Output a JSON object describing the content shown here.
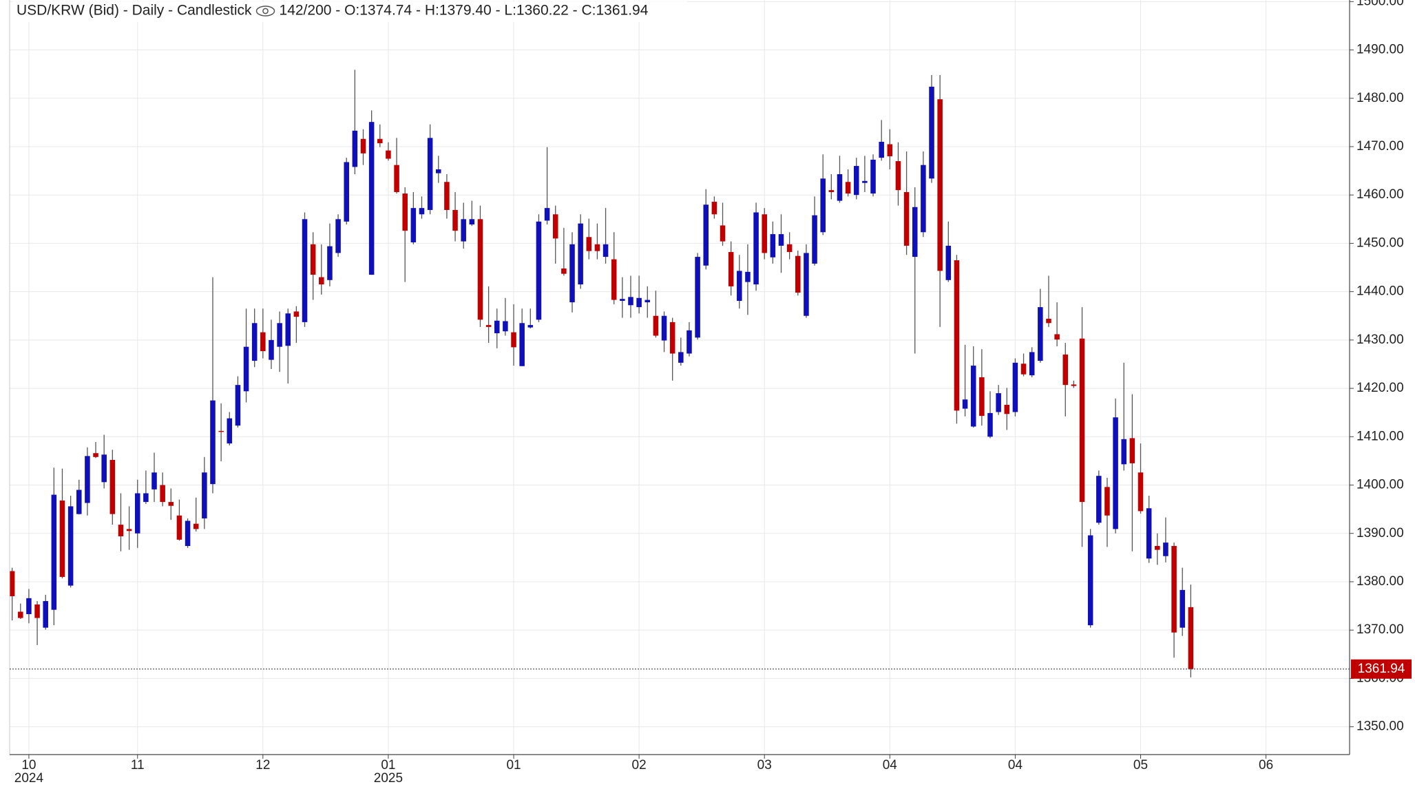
{
  "chart_data": {
    "type": "candlestick",
    "title": "USD/KRW (Bid) - Daily - Candlestick",
    "subtitle": "142/200 - O:1374.74 - H:1379.40 - L:1360.22 - C:1361.94",
    "up_color": "#1010b8",
    "down_color": "#c00000",
    "grid": true,
    "last_line": true,
    "xlim": [
      -0.3,
      160
    ],
    "xticks": [
      {
        "value": 2,
        "label": "10"
      },
      {
        "value": 15,
        "label": "11"
      },
      {
        "value": 30,
        "label": "12"
      },
      {
        "value": 45,
        "label": "01"
      },
      {
        "value": 60,
        "label": "01"
      },
      {
        "value": 75,
        "label": "02"
      },
      {
        "value": 90,
        "label": "03"
      },
      {
        "value": 105,
        "label": "04"
      },
      {
        "value": 120,
        "label": "04"
      },
      {
        "value": 135,
        "label": "05"
      },
      {
        "value": 150,
        "label": "06"
      }
    ],
    "year_ticks": [
      {
        "value": 2,
        "label": "2024"
      },
      {
        "value": 45,
        "label": "2025"
      }
    ],
    "ylim": [
      1344.25,
      1500.33
    ],
    "yticks": [
      {
        "value": 1350,
        "label": "1350.00"
      },
      {
        "value": 1360,
        "label": "1360.00"
      },
      {
        "value": 1370,
        "label": "1370.00"
      },
      {
        "value": 1380,
        "label": "1380.00"
      },
      {
        "value": 1390,
        "label": "1390.00"
      },
      {
        "value": 1400,
        "label": "1400.00"
      },
      {
        "value": 1410,
        "label": "1410.00"
      },
      {
        "value": 1420,
        "label": "1420.00"
      },
      {
        "value": 1430,
        "label": "1430.00"
      },
      {
        "value": 1440,
        "label": "1440.00"
      },
      {
        "value": 1450,
        "label": "1450.00"
      },
      {
        "value": 1460,
        "label": "1460.00"
      },
      {
        "value": 1470,
        "label": "1470.00"
      },
      {
        "value": 1480,
        "label": "1480.00"
      },
      {
        "value": 1490,
        "label": "1490.00"
      },
      {
        "value": 1500,
        "label": "1500.00"
      }
    ],
    "open": [
      1382.2,
      1373.8,
      1373.3,
      1375.3,
      1370.5,
      1374.2,
      1396.8,
      1379.2,
      1394,
      1396.3,
      1406.6,
      1400.6,
      1405.2,
      1391.8,
      1390.9,
      1390,
      1396.5,
      1399.1,
      1400,
      1396.5,
      1393.7,
      1387.4,
      1392,
      1393.1,
      1400.2,
      1411.2,
      1408.6,
      1412.3,
      1419.4,
      1425.7,
      1431.6,
      1425.9,
      1428.6,
      1428.8,
      1435.9,
      1433.7,
      1449.8,
      1443,
      1442.4,
      1448,
      1454.5,
      1465.8,
      1471.6,
      1443.5,
      1471.6,
      1469.2,
      1466.2,
      1460.3,
      1450.2,
      1456,
      1456.9,
      1464.5,
      1462.7,
      1456.9,
      1450.4,
      1453.9,
      1455,
      1433.1,
      1431.4,
      1431.8,
      1431.6,
      1424.6,
      1432.6,
      1434.2,
      1454.7,
      1456,
      1444.8,
      1437.8,
      1441.5,
      1451.3,
      1449.8,
      1447.2,
      1446.7,
      1438.1,
      1437.2,
      1436.8,
      1437.8,
      1435,
      1429.9,
      1433.7,
      1425.3,
      1427.2,
      1430.5,
      1445.4,
      1458.6,
      1453.7,
      1448.2,
      1438.1,
      1442,
      1441.5,
      1456,
      1447.1,
      1449.5,
      1449.8,
      1447.4,
      1435,
      1445.8,
      1452.3,
      1461,
      1458.8,
      1462.7,
      1460,
      1462.5,
      1460.3,
      1467.7,
      1470.5,
      1467,
      1460.6,
      1447.2,
      1452.3,
      1463.4,
      1479.8,
      1442.4,
      1446.5,
      1415.8,
      1412.1,
      1422.3,
      1410,
      1415.1,
      1416.6,
      1415.1,
      1425.1,
      1422.7,
      1425.7,
      1434.4,
      1431.2,
      1427,
      1420.8,
      1430.3,
      1371,
      1392.2,
      1399.6,
      1390.9,
      1404.3,
      1409.7,
      1402.6,
      1384.8,
      1387.4,
      1385.3,
      1387.4,
      1370.5,
      1374.74
    ],
    "high": [
      1382.9,
      1375.5,
      1378.5,
      1376,
      1377.3,
      1403.6,
      1403.4,
      1397.8,
      1401.1,
      1407.8,
      1408.9,
      1410.4,
      1407.3,
      1398.3,
      1395.6,
      1401.1,
      1403,
      1406.7,
      1402.6,
      1399.3,
      1397,
      1393.1,
      1397.4,
      1405.8,
      1443,
      1416.9,
      1415.1,
      1422.5,
      1436.5,
      1436.5,
      1436.5,
      1434.2,
      1435.9,
      1436.5,
      1437,
      1456.4,
      1452.3,
      1449.8,
      1454.1,
      1456,
      1467.7,
      1485.9,
      1473.6,
      1477.5,
      1474.6,
      1470.9,
      1471.8,
      1461.6,
      1460.6,
      1459.7,
      1474.6,
      1468.1,
      1464.3,
      1460.6,
      1458.4,
      1458.8,
      1457.8,
      1441.1,
      1436.5,
      1438.7,
      1437.4,
      1436.5,
      1436.5,
      1456,
      1469.9,
      1457.8,
      1453.2,
      1452.3,
      1456,
      1455.1,
      1454.1,
      1457.3,
      1452.3,
      1443,
      1443.3,
      1443.3,
      1441.1,
      1440.2,
      1435.9,
      1434.6,
      1430.5,
      1433.7,
      1448,
      1461.2,
      1459.7,
      1458.4,
      1450.4,
      1447.6,
      1449.8,
      1458.4,
      1457.3,
      1454.5,
      1456,
      1452.3,
      1448.5,
      1449.8,
      1459.7,
      1468.4,
      1464.3,
      1468.1,
      1465.3,
      1467.7,
      1468.1,
      1468.4,
      1475.5,
      1473.6,
      1470.9,
      1469,
      1461.6,
      1469,
      1484.8,
      1484.8,
      1454.5,
      1447.6,
      1429,
      1428.7,
      1428.1,
      1419.4,
      1420.7,
      1420.1,
      1426.2,
      1427.2,
      1428.5,
      1440.6,
      1443.3,
      1437.8,
      1429.4,
      1421.6,
      1436.8,
      1390.9,
      1403,
      1401.5,
      1417.9,
      1425.3,
      1418.8,
      1408.6,
      1397.8,
      1390,
      1393.3,
      1388.1,
      1382.9,
      1379.4
    ],
    "low": [
      1372,
      1372.3,
      1371.4,
      1366.9,
      1370.1,
      1371,
      1380.7,
      1378.8,
      1393.9,
      1393.7,
      1405.6,
      1399.3,
      1391.8,
      1386.3,
      1386.6,
      1387,
      1396.1,
      1396.5,
      1395.6,
      1392.8,
      1388.5,
      1387,
      1390.4,
      1390.9,
      1398.3,
      1404.9,
      1408.2,
      1411.9,
      1417.1,
      1424.4,
      1426.2,
      1424,
      1423.4,
      1421,
      1429.4,
      1432.7,
      1438.3,
      1439.4,
      1441.1,
      1447.2,
      1453.9,
      1464.3,
      1466.2,
      1443.5,
      1469.9,
      1467.1,
      1460.3,
      1442,
      1449.8,
      1455.1,
      1456,
      1462.5,
      1455.1,
      1450.4,
      1448.9,
      1453.6,
      1432.7,
      1429.4,
      1428.3,
      1430.9,
      1424.7,
      1424.6,
      1432.4,
      1433.7,
      1453.9,
      1445.8,
      1443.3,
      1435.7,
      1440.6,
      1446.7,
      1446.7,
      1445.8,
      1437.4,
      1434.6,
      1434.6,
      1435.5,
      1434.6,
      1430.5,
      1427.5,
      1421.6,
      1424.7,
      1426.6,
      1430.1,
      1444.6,
      1455.1,
      1449.5,
      1439.2,
      1436.5,
      1435.2,
      1440.2,
      1446.7,
      1445.8,
      1443.9,
      1446.7,
      1439.2,
      1434.6,
      1445.4,
      1451.7,
      1459.1,
      1458.4,
      1459.7,
      1459.1,
      1460.6,
      1459.7,
      1467.1,
      1465.3,
      1457.8,
      1447.6,
      1427.2,
      1451.3,
      1462.5,
      1432.7,
      1442,
      1412.7,
      1414.2,
      1411.9,
      1412.3,
      1409.7,
      1414.5,
      1411.4,
      1414.2,
      1422.5,
      1422.3,
      1425.3,
      1432.7,
      1428.7,
      1414.2,
      1420.1,
      1387.2,
      1370.5,
      1391.8,
      1387.2,
      1390,
      1403,
      1386.3,
      1394.1,
      1383.9,
      1383.5,
      1384,
      1364.3,
      1368.8,
      1360.22
    ],
    "close": [
      1377,
      1372.5,
      1376.6,
      1372.5,
      1376,
      1398,
      1381,
      1395.6,
      1399,
      1406,
      1405.8,
      1406.3,
      1394,
      1389.4,
      1390.5,
      1398.3,
      1398.3,
      1402.6,
      1396.5,
      1395.7,
      1388.7,
      1392.6,
      1390.9,
      1402.6,
      1417.5,
      1411,
      1413.8,
      1420.7,
      1428.6,
      1433.5,
      1427.7,
      1430,
      1433.5,
      1435.5,
      1434.8,
      1455,
      1443.5,
      1441.5,
      1449.4,
      1455,
      1466.8,
      1473.3,
      1468.6,
      1475.1,
      1470.7,
      1467.5,
      1460.6,
      1452.6,
      1457.3,
      1457.3,
      1471.8,
      1465.3,
      1456.9,
      1452.6,
      1455,
      1455,
      1434.2,
      1432.7,
      1434,
      1433.9,
      1428.5,
      1433.5,
      1433.1,
      1454.5,
      1457.3,
      1451,
      1443.7,
      1449.8,
      1454.1,
      1448.4,
      1448.4,
      1449.8,
      1438.3,
      1438.5,
      1438.9,
      1438.7,
      1438.3,
      1430.9,
      1435,
      1427.2,
      1427.5,
      1432,
      1447.2,
      1458,
      1456,
      1450.4,
      1441.1,
      1444.3,
      1444.1,
      1456.4,
      1448,
      1451.9,
      1451.9,
      1448.2,
      1439.8,
      1448,
      1455.8,
      1463.4,
      1460.6,
      1464.3,
      1460.3,
      1466,
      1462.9,
      1467.3,
      1471,
      1468,
      1461,
      1449.5,
      1457.5,
      1466.2,
      1482.4,
      1444.3,
      1449.5,
      1415.4,
      1417.7,
      1424.7,
      1414.3,
      1414.9,
      1419,
      1414.7,
      1425.3,
      1422.9,
      1427.5,
      1436.8,
      1433.5,
      1430.1,
      1420.7,
      1420.5,
      1396.5,
      1389.6,
      1401.9,
      1393.7,
      1414,
      1409.5,
      1404.5,
      1394.6,
      1395.2,
      1386.6,
      1388.1,
      1369.5,
      1378.3,
      1361.94
    ]
  }
}
